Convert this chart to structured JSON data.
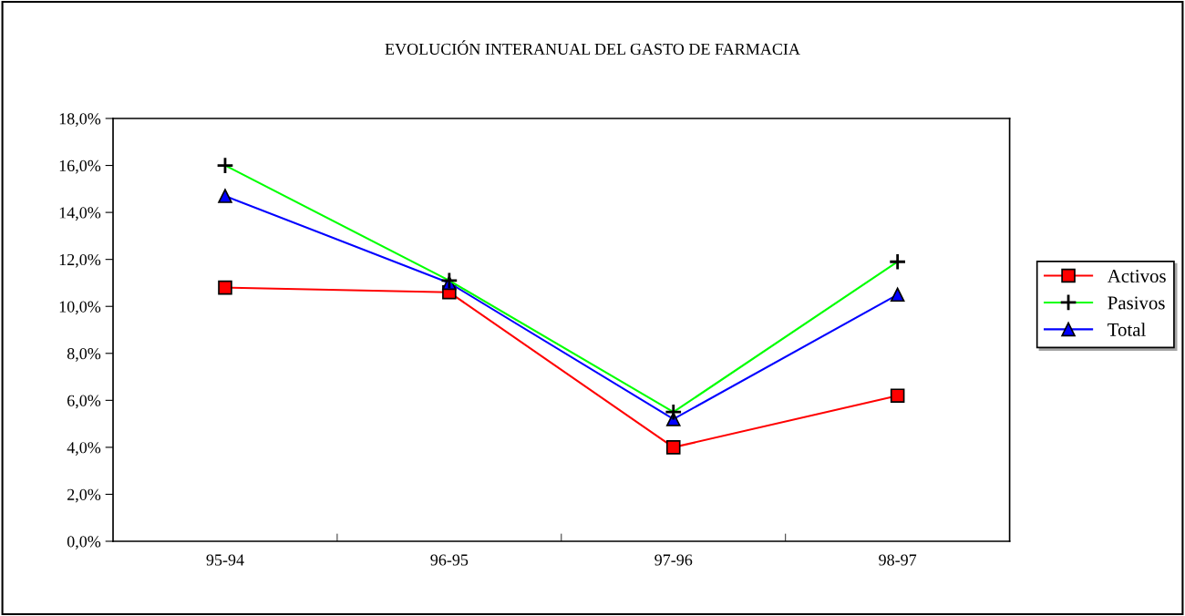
{
  "chart_data": {
    "type": "line",
    "title": "EVOLUCIÓN INTERANUAL DEL GASTO DE FARMACIA",
    "categories": [
      "95-94",
      "96-95",
      "97-96",
      "98-97"
    ],
    "series": [
      {
        "name": "Activos",
        "color": "#ff0000",
        "marker": "square",
        "values": [
          10.8,
          10.6,
          4.0,
          6.2
        ]
      },
      {
        "name": "Pasivos",
        "color": "#00ff00",
        "marker": "cross",
        "values": [
          16.0,
          11.1,
          5.5,
          11.9
        ]
      },
      {
        "name": "Total",
        "color": "#0000ff",
        "marker": "triangle",
        "values": [
          14.7,
          11.0,
          5.2,
          10.5
        ]
      }
    ],
    "ylim": [
      0,
      18
    ],
    "yticks": [
      {
        "value": 0,
        "label": "0,0%"
      },
      {
        "value": 2,
        "label": "2,0%"
      },
      {
        "value": 4,
        "label": "4,0%"
      },
      {
        "value": 6,
        "label": "6,0%"
      },
      {
        "value": 8,
        "label": "8,0%"
      },
      {
        "value": 10,
        "label": "10,0%"
      },
      {
        "value": 12,
        "label": "12,0%"
      },
      {
        "value": 14,
        "label": "14,0%"
      },
      {
        "value": 16,
        "label": "16,0%"
      },
      {
        "value": 18,
        "label": "18,0%"
      }
    ],
    "grid": false,
    "legend": "right"
  }
}
